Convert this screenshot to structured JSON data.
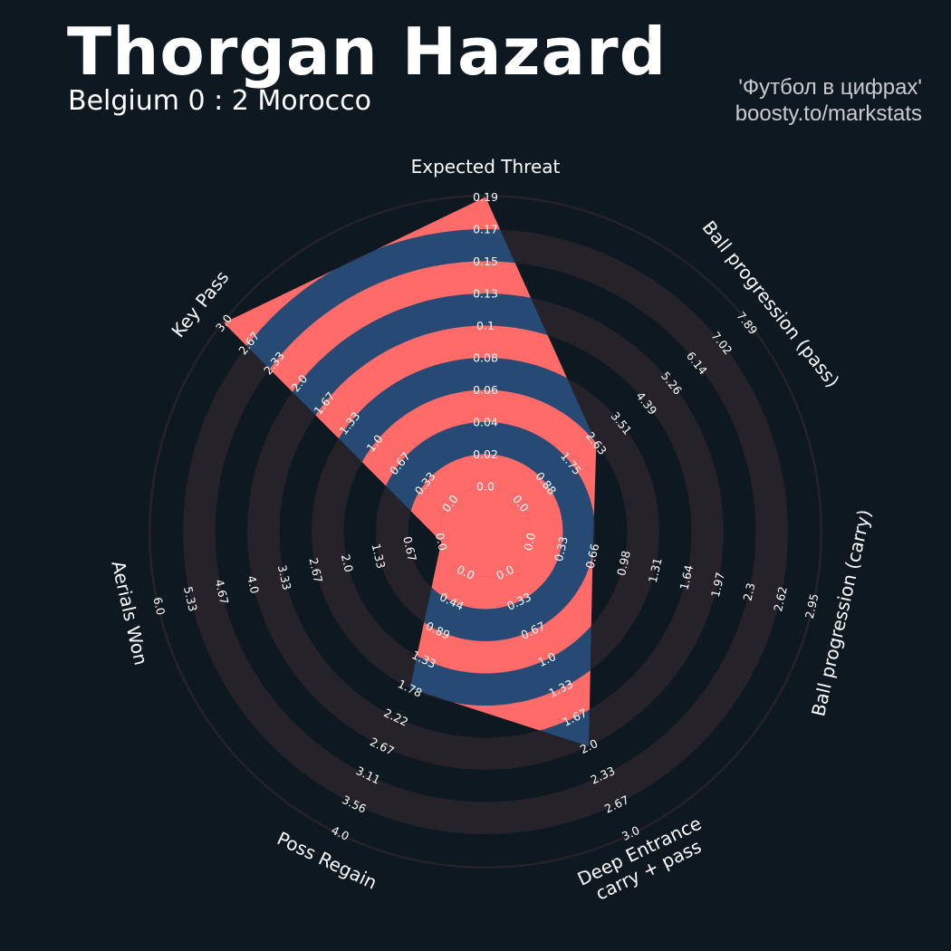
{
  "header": {
    "title": "Thorgan Hazard",
    "subtitle": "Belgium 0 : 2 Morocco",
    "credit_line1": "'Футбол в цифрах'",
    "credit_line2": "boosty.to/markstats"
  },
  "colors": {
    "background": "#0e1820",
    "ring_dark": "#262229",
    "ring_light": "#0e1820",
    "player_fill": "#274a75",
    "player_highlight": "#ff6b69",
    "text": "#ffffff",
    "credit": "#c9cbcf"
  },
  "chart_data": {
    "type": "radar",
    "title": "Thorgan Hazard",
    "subtitle": "Belgium 0 : 2 Morocco",
    "params": [
      {
        "name": "Expected Threat",
        "value": 0.19,
        "ticks": [
          "0.0",
          "0.02",
          "0.04",
          "0.06",
          "0.08",
          "0.1",
          "0.13",
          "0.15",
          "0.17",
          "0.19"
        ]
      },
      {
        "name": "Ball progression (pass)",
        "value": 2.63,
        "ticks": [
          "0.0",
          "0.88",
          "1.75",
          "2.63",
          "3.51",
          "4.39",
          "5.26",
          "6.14",
          "7.02",
          "7.89"
        ]
      },
      {
        "name": "Ball progression (carry)",
        "value": 0.66,
        "ticks": [
          "0.0",
          "0.33",
          "0.66",
          "0.98",
          "1.31",
          "1.64",
          "1.97",
          "2.3",
          "2.62",
          "2.95"
        ]
      },
      {
        "name": "Deep Entrance\ncarry + pass",
        "value": 2.0,
        "ticks": [
          "0.0",
          "0.33",
          "0.67",
          "1.0",
          "1.33",
          "1.67",
          "2.0",
          "2.33",
          "2.67",
          "3.0"
        ]
      },
      {
        "name": "Poss Regain",
        "value": 1.78,
        "ticks": [
          "0.0",
          "0.44",
          "0.89",
          "1.33",
          "1.78",
          "2.22",
          "2.67",
          "3.11",
          "3.56",
          "4.0"
        ]
      },
      {
        "name": "Aerials Won",
        "value": 0.0,
        "ticks": [
          "0.0",
          "0.67",
          "1.33",
          "2.0",
          "2.67",
          "3.33",
          "4.0",
          "4.67",
          "5.33",
          "6.0"
        ]
      },
      {
        "name": "Key Pass",
        "value": 3.0,
        "ticks": [
          "0.0",
          "0.33",
          "0.67",
          "1.0",
          "1.33",
          "1.67",
          "2.0",
          "2.33",
          "2.67",
          "3.0"
        ]
      }
    ]
  }
}
